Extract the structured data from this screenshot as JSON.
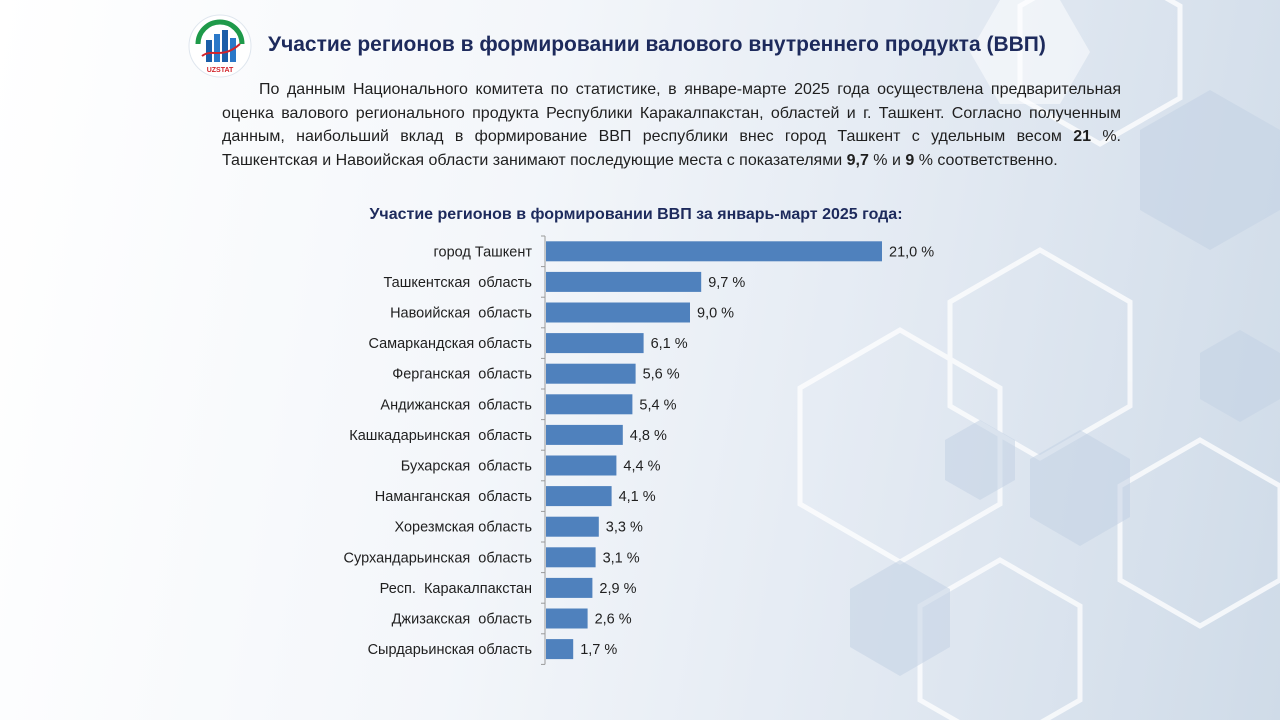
{
  "header": {
    "title": "Участие регионов в формировании валового внутреннего продукта (ВВП)",
    "logo_text": "UZSTAT"
  },
  "intro": {
    "p1": "По данным Национального комитета по статистике, в январе-марте 2025 года осуществлена предварительная оценка валового регионального продукта Республики Каракалпакстан, областей и г. Ташкент. Согласно полученным данным, наибольший вклад в формирование ВВП республики внес город Ташкент с удельным весом ",
    "b1": "21",
    "p2": " %. Ташкентская и Навоийская области занимают последующие места с показателями ",
    "b2": "9,7",
    "p3": " % и ",
    "b3": "9",
    "p4": " % соответственно."
  },
  "colors": {
    "bar": "#4f81bd",
    "title": "#1d2a5c"
  },
  "chart_data": {
    "type": "bar",
    "orientation": "horizontal",
    "title": "Участие регионов в формировании ВВП за январь-март 2025 года:",
    "categories": [
      "город Ташкент",
      "Ташкентская  область",
      "Навоийская  область",
      "Самаркандская область",
      "Ферганская  область",
      "Андижанская  область",
      "Кашкадарьинская  область",
      "Бухарская  область",
      "Наманганская  область",
      "Хорезмская область",
      "Сурхандарьинская  область",
      "Респ.  Каракалпакстан",
      "Джизакская  область",
      "Сырдарьинская область"
    ],
    "values": [
      21.0,
      9.7,
      9.0,
      6.1,
      5.6,
      5.4,
      4.8,
      4.4,
      4.1,
      3.3,
      3.1,
      2.9,
      2.6,
      1.7
    ],
    "labels": [
      "21,0 %",
      "9,7 %",
      "9,0 %",
      "6,1 %",
      "5,6 %",
      "5,4 %",
      "4,8 %",
      "4,4 %",
      "4,1 %",
      "3,3 %",
      "3,1 %",
      "2,9 %",
      "2,6 %",
      "1,7 %"
    ],
    "xlim": [
      0,
      21
    ],
    "unit": "%"
  }
}
